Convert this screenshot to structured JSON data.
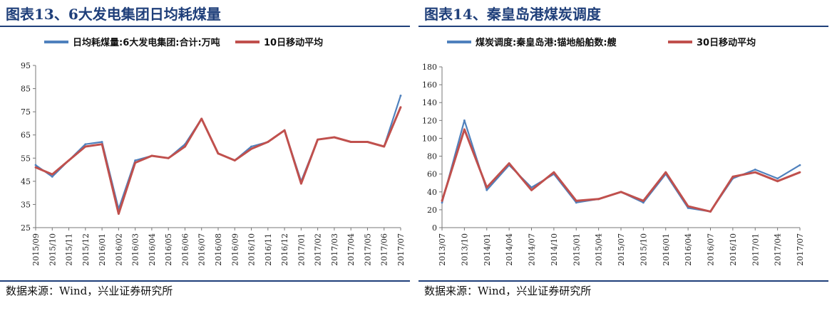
{
  "left": {
    "title": "图表13、6大发电集团日均耗煤量",
    "source": "数据来源：Wind，兴业证券研究所",
    "colors": {
      "series": "#4f81bd",
      "ma": "#c0504d"
    },
    "chart_data": {
      "type": "line",
      "legend_position": "top",
      "grid": false,
      "ylim": [
        25,
        95
      ],
      "yticks": [
        "25",
        "35",
        "45",
        "55",
        "65",
        "75",
        "85",
        "95"
      ],
      "xticks": [
        "2015/09",
        "2015/10",
        "2015/11",
        "2015/12",
        "2016/01",
        "2016/02",
        "2016/03",
        "2016/04",
        "2016/05",
        "2016/06",
        "2016/07",
        "2016/08",
        "2016/09",
        "2016/10",
        "2016/11",
        "2016/12",
        "2017/01",
        "2017/02",
        "2017/03",
        "2017/04",
        "2017/05",
        "2017/06",
        "2017/07"
      ],
      "series": [
        {
          "name": "日均耗煤量:6大发电集团:合计:万吨",
          "x": [
            "2015/09",
            "2015/10",
            "2015/11",
            "2015/12",
            "2016/01",
            "2016/02",
            "2016/03",
            "2016/04",
            "2016/05",
            "2016/06",
            "2016/07",
            "2016/08",
            "2016/09",
            "2016/10",
            "2016/11",
            "2016/12",
            "2017/01",
            "2017/02",
            "2017/03",
            "2017/04",
            "2017/05",
            "2017/06",
            "2017/07"
          ],
          "values": [
            52,
            47,
            54,
            61,
            62,
            33,
            54,
            56,
            55,
            61,
            72,
            57,
            54,
            60,
            62,
            67,
            45,
            63,
            64,
            62,
            62,
            60,
            82
          ]
        },
        {
          "name": "10日移动平均",
          "x": [
            "2015/09",
            "2015/10",
            "2015/11",
            "2015/12",
            "2016/01",
            "2016/02",
            "2016/03",
            "2016/04",
            "2016/05",
            "2016/06",
            "2016/07",
            "2016/08",
            "2016/09",
            "2016/10",
            "2016/11",
            "2016/12",
            "2017/01",
            "2017/02",
            "2017/03",
            "2017/04",
            "2017/05",
            "2017/06",
            "2017/07"
          ],
          "values": [
            51,
            48,
            54,
            60,
            61,
            31,
            53,
            56,
            55,
            60,
            72,
            57,
            54,
            59,
            62,
            67,
            44,
            63,
            64,
            62,
            62,
            60,
            77
          ]
        }
      ]
    }
  },
  "right": {
    "title": "图表14、秦皇岛港煤炭调度",
    "source": "数据来源：Wind，兴业证券研究所",
    "colors": {
      "series": "#4f81bd",
      "ma": "#c0504d"
    },
    "chart_data": {
      "type": "line",
      "legend_position": "top",
      "grid": false,
      "ylim": [
        0,
        180
      ],
      "yticks": [
        "0",
        "20",
        "40",
        "60",
        "80",
        "100",
        "120",
        "140",
        "160",
        "180"
      ],
      "xticks": [
        "2013/07",
        "2013/10",
        "2014/01",
        "2014/04",
        "2014/07",
        "2014/10",
        "2015/01",
        "2015/04",
        "2015/07",
        "2015/10",
        "2016/01",
        "2016/04",
        "2016/07",
        "2016/10",
        "2017/01",
        "2017/04",
        "2017/07"
      ],
      "series": [
        {
          "name": "煤炭调度:秦皇岛港:锚地船舶数:艘",
          "x": [
            "2013/07",
            "2013/10",
            "2014/01",
            "2014/04",
            "2014/07",
            "2014/10",
            "2015/01",
            "2015/04",
            "2015/07",
            "2015/10",
            "2016/01",
            "2016/04",
            "2016/07",
            "2016/10",
            "2017/01",
            "2017/04",
            "2017/07"
          ],
          "values": [
            28,
            120,
            42,
            70,
            45,
            60,
            28,
            32,
            40,
            28,
            60,
            22,
            18,
            55,
            65,
            55,
            70
          ]
        },
        {
          "name": "30日移动平均",
          "x": [
            "2013/07",
            "2013/10",
            "2014/01",
            "2014/04",
            "2014/07",
            "2014/10",
            "2015/01",
            "2015/04",
            "2015/07",
            "2015/10",
            "2016/01",
            "2016/04",
            "2016/07",
            "2016/10",
            "2017/01",
            "2017/04",
            "2017/07"
          ],
          "values": [
            30,
            110,
            45,
            72,
            42,
            62,
            30,
            32,
            40,
            30,
            62,
            24,
            18,
            57,
            62,
            52,
            62
          ]
        }
      ]
    }
  }
}
